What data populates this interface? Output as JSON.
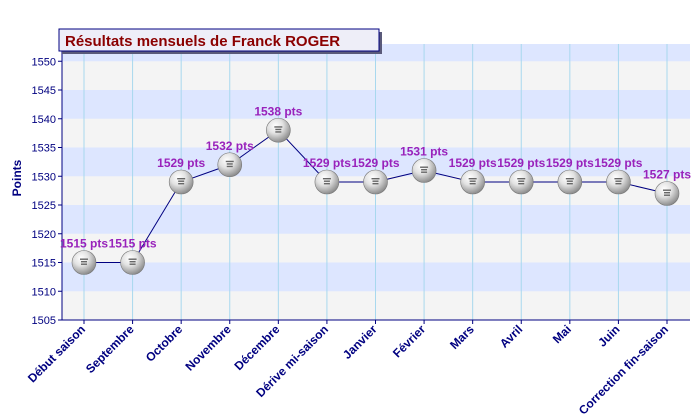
{
  "chart_data": {
    "type": "line",
    "title": "Résultats mensuels de Franck ROGER",
    "ylabel": "Points",
    "xlabel": "",
    "ylim": [
      1505,
      1553
    ],
    "yticks": [
      1505,
      1510,
      1515,
      1520,
      1525,
      1530,
      1535,
      1540,
      1545,
      1550
    ],
    "grid": true,
    "categories": [
      "Début saison",
      "Septembre",
      "Octobre",
      "Novembre",
      "Décembre",
      "Dérive mi-saison",
      "Janvier",
      "Février",
      "Mars",
      "Avril",
      "Mai",
      "Juin",
      "Correction fin-saison"
    ],
    "values": [
      1515,
      1515,
      1529,
      1532,
      1538,
      1529,
      1529,
      1531,
      1529,
      1529,
      1529,
      1529,
      1527
    ],
    "labels": [
      "1515 pts",
      "1515 pts",
      "1529 pts",
      "1532 pts",
      "1538 pts",
      "1529 pts",
      "1529 pts",
      "1531 pts",
      "1529 pts",
      "1529 pts",
      "1529 pts",
      "1529 pts",
      "1527 pts"
    ],
    "colors": {
      "line": "#000080",
      "axis": "#000080",
      "band_light": "#f4f4f4",
      "band_blue": "#dde6ff",
      "grid_vertical": "#a8d8ee",
      "data_label": "#9922bb",
      "title_text": "#8b0000",
      "title_bg": "#eeeef8"
    }
  }
}
